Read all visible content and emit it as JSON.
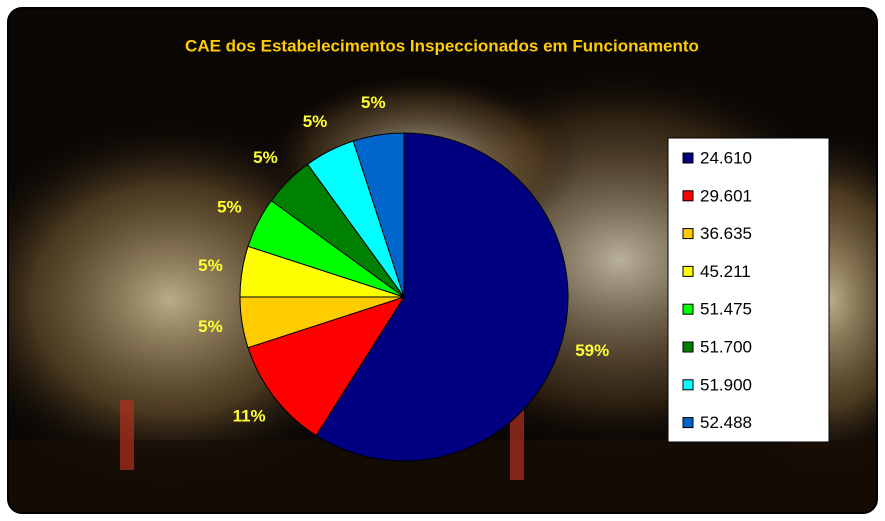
{
  "chart_data": {
    "type": "pie",
    "title": "CAE dos Estabelecimentos Inspeccionados em Funcionamento",
    "categories": [
      "24.610",
      "29.601",
      "36.635",
      "45.211",
      "51.475",
      "51.700",
      "51.900",
      "52.488"
    ],
    "values": [
      59,
      11,
      5,
      5,
      5,
      5,
      5,
      5
    ],
    "value_labels": [
      "59%",
      "11%",
      "5%",
      "5%",
      "5%",
      "5%",
      "5%",
      "5%"
    ],
    "colors": [
      "#000080",
      "#ff0000",
      "#ffcc00",
      "#ffff00",
      "#00ff00",
      "#008000",
      "#00ffff",
      "#0066cc"
    ],
    "legend": "right"
  }
}
